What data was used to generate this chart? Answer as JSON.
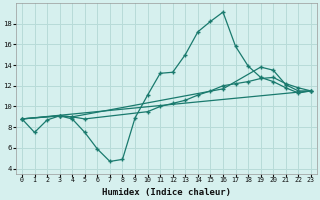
{
  "xlabel": "Humidex (Indice chaleur)",
  "xlim": [
    -0.5,
    23.5
  ],
  "ylim": [
    3.5,
    20
  ],
  "yticks": [
    4,
    6,
    8,
    10,
    12,
    14,
    16,
    18
  ],
  "xticks": [
    0,
    1,
    2,
    3,
    4,
    5,
    6,
    7,
    8,
    9,
    10,
    11,
    12,
    13,
    14,
    15,
    16,
    17,
    18,
    19,
    20,
    21,
    22,
    23
  ],
  "bg_color": "#d6f0ee",
  "grid_color": "#b8dbd8",
  "line_color": "#1a7a6e",
  "line1_x": [
    0,
    1,
    2,
    3,
    4,
    5,
    6,
    7,
    8,
    9,
    10,
    11,
    12,
    13,
    14,
    15,
    16,
    17,
    18,
    19,
    20,
    21,
    22,
    23
  ],
  "line1_y": [
    8.8,
    7.5,
    8.7,
    9.1,
    8.8,
    7.5,
    5.9,
    4.7,
    4.9,
    8.9,
    11.1,
    13.2,
    13.3,
    15.0,
    17.2,
    18.2,
    19.1,
    15.8,
    13.9,
    12.8,
    12.4,
    11.8,
    11.3,
    11.5
  ],
  "line2_x": [
    0,
    3,
    4,
    5,
    10,
    11,
    12,
    13,
    14,
    15,
    16,
    17,
    18,
    19,
    20,
    21,
    22,
    23
  ],
  "line2_y": [
    8.8,
    9.1,
    9.0,
    8.8,
    9.5,
    10.0,
    10.3,
    10.6,
    11.1,
    11.5,
    12.0,
    12.2,
    12.4,
    12.7,
    12.8,
    12.2,
    11.8,
    11.5
  ],
  "line3_x": [
    0,
    3,
    4,
    16,
    19,
    20,
    21,
    22,
    23
  ],
  "line3_y": [
    8.8,
    9.1,
    9.0,
    11.7,
    13.8,
    13.5,
    12.1,
    11.5,
    11.5
  ],
  "line4_x": [
    0,
    23
  ],
  "line4_y": [
    8.8,
    11.5
  ]
}
